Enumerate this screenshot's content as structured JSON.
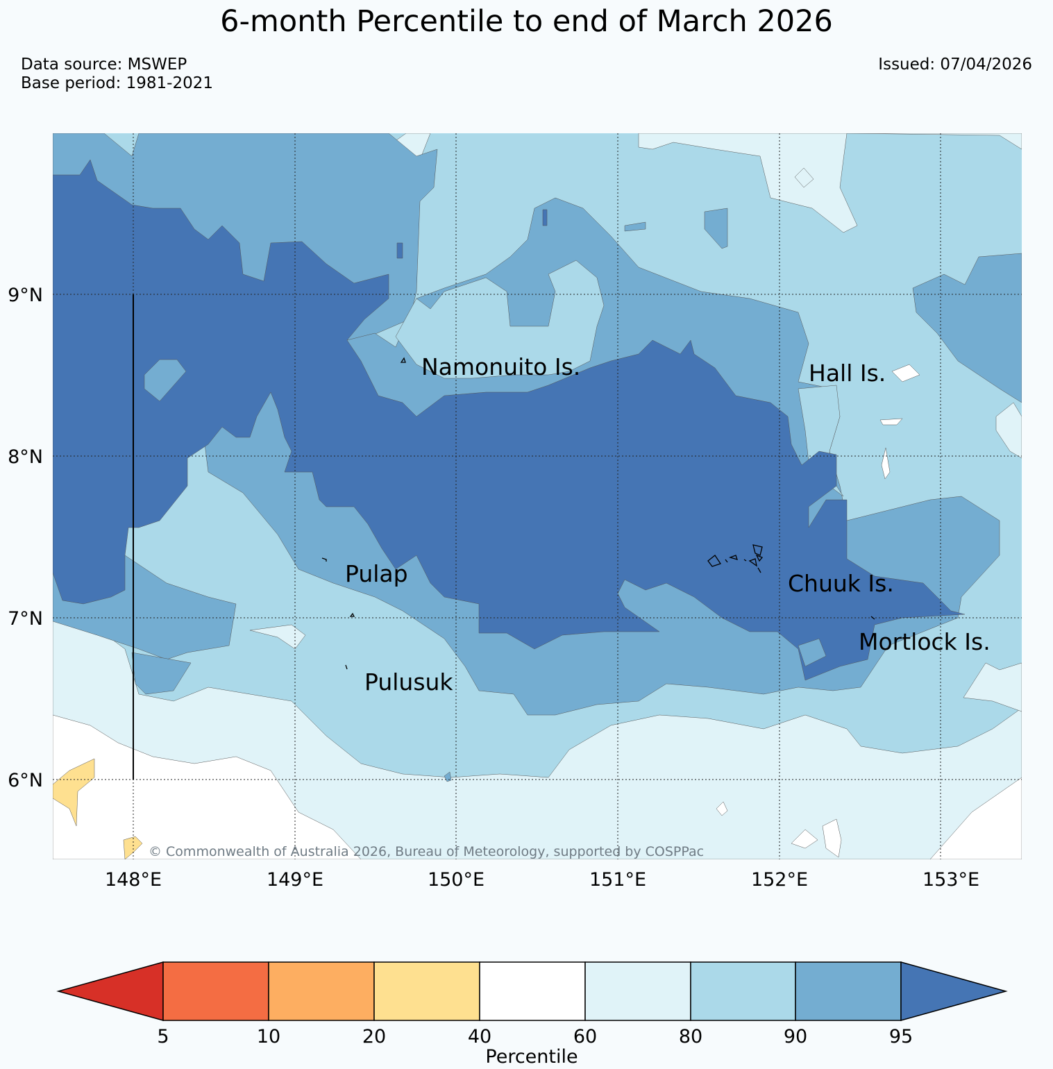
{
  "header": {
    "title": "6-month Percentile to end of March 2026",
    "data_source": "Data source: MSWEP",
    "base_period": "Base period: 1981-2021",
    "issued": "Issued: 07/04/2026"
  },
  "map": {
    "lat_labels": [
      "9°N",
      "8°N",
      "7°N",
      "6°N"
    ],
    "lon_labels": [
      "148°E",
      "149°E",
      "150°E",
      "151°E",
      "152°E",
      "153°E"
    ],
    "places": [
      {
        "name": "Namonuito Is."
      },
      {
        "name": "Hall Is."
      },
      {
        "name": "Pulap"
      },
      {
        "name": "Chuuk Is."
      },
      {
        "name": "Mortlock Is."
      },
      {
        "name": "Pulusuk"
      }
    ],
    "copyright": "© Commonwealth of Australia 2026, Bureau of Meteorology, supported by COSPPac"
  },
  "colorbar": {
    "title": "Percentile",
    "ticks": [
      "5",
      "10",
      "20",
      "40",
      "60",
      "80",
      "90",
      "95"
    ],
    "colors": [
      "#d73027",
      "#f46d43",
      "#fdae61",
      "#fee090",
      "#ffffff",
      "#e0f3f8",
      "#abd9e9",
      "#74add1",
      "#4575b4"
    ]
  }
}
